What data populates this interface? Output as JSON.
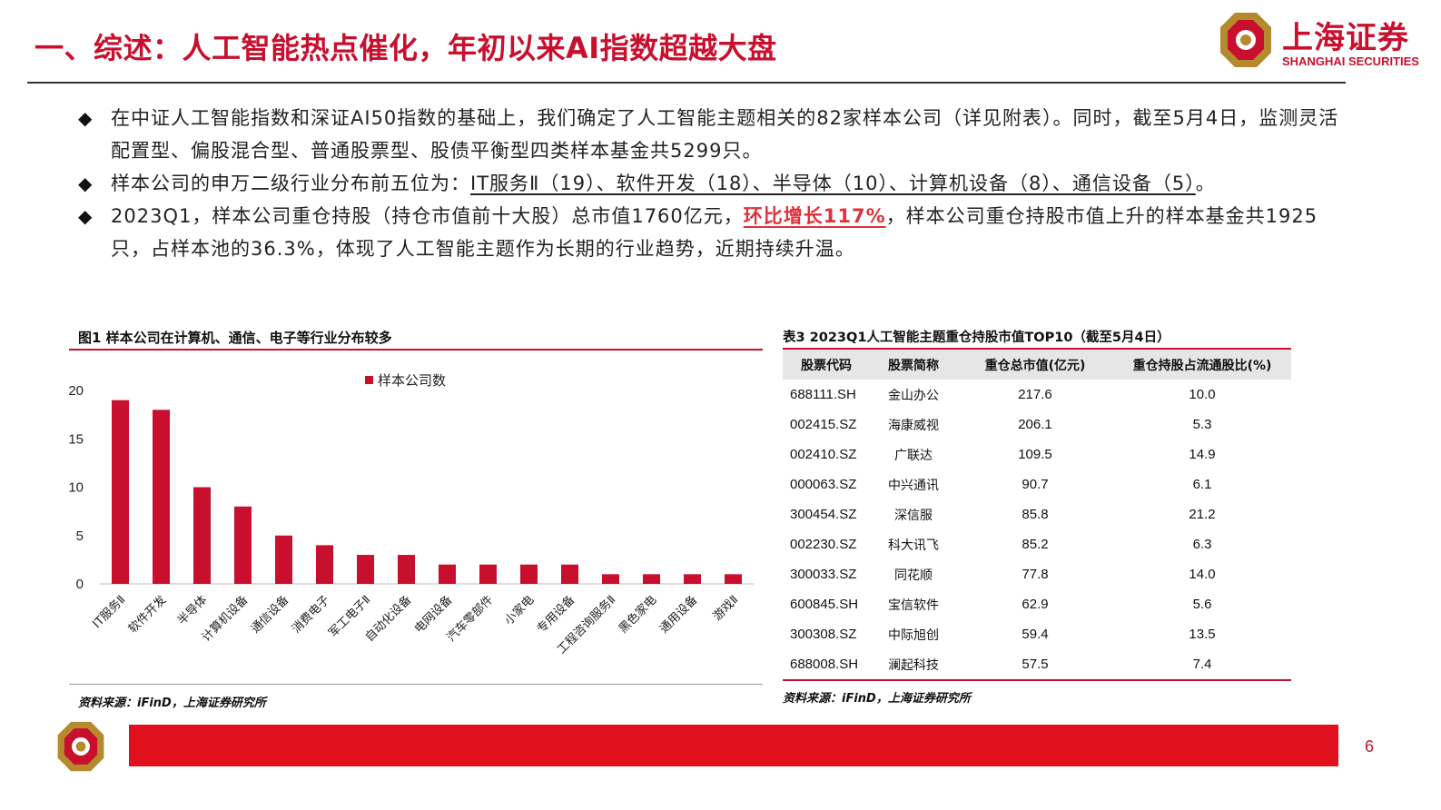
{
  "header": {
    "title": "一、综述：人工智能热点催化，年初以来AI指数超越大盘",
    "brand_cn": "上海证券",
    "brand_en": "SHANGHAI SECURITIES"
  },
  "bullets": [
    {
      "text_a": "在中证人工智能指数和深证AI50指数的基础上，我们确定了人工智能主题相关的82家样本公司（详见附表）。同时，截至5月4日，监测灵活配置型、偏股混合型、普通股票型、股债平衡型四类样本基金共5299只。"
    },
    {
      "text_a": "样本公司的申万二级行业分布前五位为：",
      "text_u": "IT服务Ⅱ（19）、软件开发（18）、半导体（10）、计算机设备（8）、通信设备（5）",
      "text_b": "。"
    },
    {
      "text_a": "2023Q1，样本公司重仓持股（持仓市值前十大股）总市值1760亿元，",
      "text_hl": "环比增长117%",
      "text_b": "，样本公司重仓持股市值上升的样本基金共1925只，占样本池的36.3%，体现了人工智能主题作为长期的行业趋势，近期持续升温。"
    }
  ],
  "figure": {
    "title": "图1  样本公司在计算机、通信、电子等行业分布较多",
    "source": "资料来源：iFinD，上海证券研究所"
  },
  "chart_data": {
    "type": "bar",
    "title": "",
    "xlabel": "",
    "ylabel": "",
    "ylim": [
      0,
      20
    ],
    "yticks": [
      0,
      5,
      10,
      15,
      20
    ],
    "legend_position": "top",
    "bar_color": "#c8102e",
    "categories": [
      "IT服务Ⅱ",
      "软件开发",
      "半导体",
      "计算机设备",
      "通信设备",
      "消费电子",
      "军工电子Ⅱ",
      "自动化设备",
      "电网设备",
      "汽车零部件",
      "小家电",
      "专用设备",
      "工程咨询服务Ⅱ",
      "黑色家电",
      "通用设备",
      "游戏Ⅱ"
    ],
    "series": [
      {
        "name": "样本公司数",
        "values": [
          19,
          18,
          10,
          8,
          5,
          4,
          3,
          3,
          2,
          2,
          2,
          2,
          1,
          1,
          1,
          1
        ]
      }
    ]
  },
  "table": {
    "title": "表3 2023Q1人工智能主题重仓持股市值TOP10（截至5月4日）",
    "headers": [
      "股票代码",
      "股票简称",
      "重仓总市值(亿元)",
      "重仓持股占流通股比(%)"
    ],
    "rows": [
      [
        "688111.SH",
        "金山办公",
        "217.6",
        "10.0"
      ],
      [
        "002415.SZ",
        "海康威视",
        "206.1",
        "5.3"
      ],
      [
        "002410.SZ",
        "广联达",
        "109.5",
        "14.9"
      ],
      [
        "000063.SZ",
        "中兴通讯",
        "90.7",
        "6.1"
      ],
      [
        "300454.SZ",
        "深信服",
        "85.8",
        "21.2"
      ],
      [
        "002230.SZ",
        "科大讯飞",
        "85.2",
        "6.3"
      ],
      [
        "300033.SZ",
        "同花顺",
        "77.8",
        "14.0"
      ],
      [
        "600845.SH",
        "宝信软件",
        "62.9",
        "5.6"
      ],
      [
        "300308.SZ",
        "中际旭创",
        "59.4",
        "13.5"
      ],
      [
        "688008.SH",
        "澜起科技",
        "57.5",
        "7.4"
      ]
    ],
    "source": "资料来源：iFinD，上海证券研究所"
  },
  "footer": {
    "page": "6",
    "bar_color": "#e0101c"
  }
}
